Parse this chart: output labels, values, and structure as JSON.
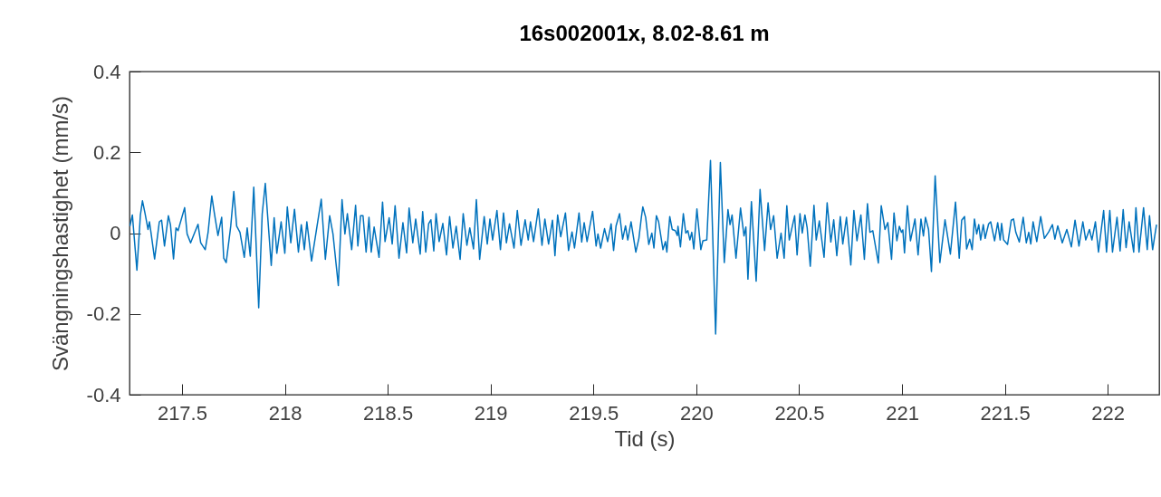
{
  "chart_data": {
    "type": "line",
    "title": "16s002001x, 8.02-8.61 m",
    "xlabel": "Tid (s)",
    "ylabel": "Svängningshastighet (mm/s)",
    "xlim": [
      217.245,
      222.25
    ],
    "xticks": [
      217.5,
      218,
      218.5,
      219,
      219.5,
      220,
      220.5,
      221,
      221.5,
      222
    ],
    "ylim": [
      -0.4,
      0.4
    ],
    "yticks": [
      -0.4,
      -0.2,
      0,
      0.2,
      0.4
    ],
    "grid": false,
    "line_style": "solid",
    "marker": "none",
    "series": [
      {
        "color": "#0072bd",
        "x": [
          217.247,
          217.259,
          217.281,
          217.298,
          217.308,
          217.32,
          217.335,
          217.342,
          217.349,
          217.367,
          217.39,
          217.401,
          217.415,
          217.434,
          217.444,
          217.459,
          217.471,
          217.481,
          217.513,
          217.525,
          217.542,
          217.578,
          217.591,
          217.613,
          217.627,
          217.645,
          217.656,
          217.675,
          217.693,
          217.703,
          217.715,
          217.737,
          217.752,
          217.766,
          217.782,
          217.803,
          217.817,
          217.832,
          217.849,
          217.873,
          217.89,
          217.905,
          217.934,
          217.948,
          217.961,
          217.982,
          218.0,
          218.012,
          218.029,
          218.047,
          218.066,
          218.08,
          218.095,
          218.107,
          218.13,
          218.177,
          218.197,
          218.218,
          218.234,
          218.26,
          218.278,
          218.292,
          218.304,
          218.325,
          218.344,
          218.355,
          218.368,
          218.38,
          218.395,
          218.409,
          218.42,
          218.434,
          218.458,
          218.475,
          218.487,
          218.507,
          218.522,
          218.536,
          218.555,
          218.574,
          218.592,
          218.604,
          218.622,
          218.636,
          218.658,
          218.67,
          218.685,
          218.699,
          218.71,
          218.724,
          218.735,
          218.75,
          218.768,
          218.786,
          218.801,
          218.817,
          218.833,
          218.852,
          218.867,
          218.885,
          218.899,
          218.917,
          218.931,
          218.947,
          218.969,
          218.984,
          218.997,
          219.01,
          219.031,
          219.048,
          219.063,
          219.077,
          219.092,
          219.114,
          219.13,
          219.148,
          219.168,
          219.183,
          219.194,
          219.209,
          219.232,
          219.25,
          219.264,
          219.282,
          219.301,
          219.313,
          219.326,
          219.341,
          219.364,
          219.379,
          219.396,
          219.408,
          219.43,
          219.443,
          219.455,
          219.469,
          219.496,
          219.513,
          219.522,
          219.535,
          219.554,
          219.569,
          219.586,
          219.598,
          219.61,
          219.627,
          219.642,
          219.656,
          219.667,
          219.683,
          219.706,
          219.721,
          219.733,
          219.74,
          219.754,
          219.769,
          219.784,
          219.794,
          219.806,
          219.817,
          219.838,
          219.85,
          219.857,
          219.871,
          219.883,
          219.898,
          219.908,
          219.911,
          219.923,
          219.937,
          219.949,
          219.959,
          219.969,
          219.978,
          219.988,
          220.003,
          220.022,
          220.032,
          220.051,
          220.069,
          220.094,
          220.117,
          220.136,
          220.154,
          220.164,
          220.174,
          220.193,
          220.215,
          220.232,
          220.241,
          220.251,
          220.268,
          220.291,
          220.31,
          220.332,
          220.349,
          220.361,
          220.376,
          220.393,
          220.412,
          220.427,
          220.44,
          220.452,
          220.478,
          220.49,
          220.504,
          220.515,
          220.528,
          220.539,
          220.554,
          220.572,
          220.583,
          220.598,
          220.621,
          220.636,
          220.654,
          220.668,
          220.683,
          220.7,
          220.712,
          220.73,
          220.751,
          220.766,
          220.781,
          220.8,
          220.817,
          220.832,
          220.844,
          220.858,
          220.885,
          220.899,
          220.917,
          220.931,
          220.949,
          220.961,
          220.975,
          220.987,
          220.997,
          221.004,
          221.012,
          221.026,
          221.041,
          221.063,
          221.078,
          221.092,
          221.104,
          221.114,
          221.129,
          221.143,
          221.161,
          221.184,
          221.209,
          221.235,
          221.26,
          221.278,
          221.29,
          221.304,
          221.314,
          221.329,
          221.341,
          221.352,
          221.363,
          221.373,
          221.382,
          221.395,
          221.404,
          221.421,
          221.431,
          221.45,
          221.465,
          221.477,
          221.484,
          221.494,
          221.513,
          221.531,
          221.542,
          221.553,
          221.57,
          221.589,
          221.604,
          221.616,
          221.626,
          221.637,
          221.655,
          221.674,
          221.692,
          221.713,
          221.731,
          221.743,
          221.757,
          221.779,
          221.801,
          221.823,
          221.841,
          221.86,
          221.879,
          221.893,
          221.911,
          221.923,
          221.94,
          221.955,
          221.98,
          221.994,
          222.01,
          222.023,
          222.045,
          222.06,
          222.075,
          222.089,
          222.104,
          222.126,
          222.137,
          222.152,
          222.174,
          222.192,
          222.203,
          222.218,
          222.237
        ],
        "values": [
          0.017,
          0.045,
          -0.092,
          0.045,
          0.08,
          0.05,
          0.009,
          0.028,
          0.003,
          -0.064,
          0.028,
          0.032,
          -0.032,
          0.043,
          0.021,
          -0.064,
          0.013,
          0.006,
          0.063,
          -0.002,
          -0.024,
          0.022,
          -0.024,
          -0.041,
          0.002,
          0.092,
          0.054,
          -0.006,
          0.039,
          -0.062,
          -0.073,
          0.017,
          0.103,
          0.017,
          0.002,
          -0.06,
          0.013,
          -0.057,
          0.114,
          -0.185,
          0.047,
          0.123,
          -0.08,
          0.038,
          -0.05,
          0.028,
          -0.05,
          0.065,
          -0.024,
          0.059,
          -0.047,
          0.021,
          -0.041,
          0.028,
          -0.069,
          0.084,
          -0.065,
          0.043,
          -0.002,
          -0.13,
          0.083,
          -0.002,
          0.048,
          -0.041,
          0.069,
          -0.032,
          0.043,
          0.043,
          -0.047,
          0.039,
          -0.047,
          0.015,
          -0.06,
          0.077,
          -0.021,
          0.038,
          -0.027,
          0.068,
          -0.062,
          0.026,
          -0.049,
          0.062,
          -0.024,
          0.035,
          -0.052,
          0.053,
          -0.047,
          0.023,
          0.033,
          -0.044,
          0.048,
          -0.021,
          0.024,
          -0.054,
          0.041,
          -0.037,
          0.017,
          -0.065,
          0.048,
          -0.03,
          0.013,
          -0.039,
          0.083,
          -0.065,
          0.041,
          -0.027,
          0.035,
          -0.017,
          0.056,
          -0.041,
          0.05,
          -0.024,
          0.023,
          -0.037,
          0.056,
          -0.03,
          0.033,
          -0.017,
          0.028,
          -0.021,
          0.06,
          -0.03,
          0.035,
          -0.027,
          0.032,
          -0.056,
          0.045,
          -0.009,
          0.05,
          -0.043,
          0.003,
          -0.037,
          0.05,
          -0.022,
          0.026,
          -0.021,
          0.054,
          -0.032,
          -0.002,
          -0.037,
          0.011,
          -0.021,
          0.023,
          -0.043,
          0.018,
          0.048,
          -0.015,
          0.018,
          -0.017,
          0.028,
          -0.047,
          -0.013,
          0.039,
          0.065,
          0.039,
          -0.028,
          0.0,
          -0.037,
          0.043,
          0.028,
          -0.041,
          -0.021,
          -0.047,
          0.041,
          0.009,
          0.006,
          -0.006,
          0.017,
          -0.034,
          0.048,
          0.0,
          0.006,
          -0.017,
          0.002,
          -0.039,
          0.06,
          -0.041,
          -0.019,
          -0.017,
          0.18,
          -0.25,
          0.175,
          -0.073,
          0.058,
          0.021,
          0.045,
          -0.062,
          0.062,
          -0.007,
          0.015,
          -0.114,
          0.078,
          -0.119,
          0.108,
          -0.043,
          0.075,
          0.009,
          0.043,
          -0.062,
          0.0,
          -0.062,
          0.068,
          -0.017,
          0.043,
          -0.054,
          0.048,
          0.0,
          0.045,
          0.013,
          -0.082,
          0.069,
          -0.017,
          0.03,
          -0.06,
          0.075,
          -0.022,
          0.033,
          -0.056,
          0.041,
          -0.027,
          0.039,
          -0.079,
          0.056,
          -0.019,
          0.045,
          -0.065,
          0.073,
          0.002,
          0.006,
          -0.074,
          0.068,
          0.009,
          0.026,
          -0.065,
          0.05,
          -0.019,
          0.017,
          0.002,
          0.008,
          -0.049,
          0.068,
          -0.019,
          0.035,
          -0.054,
          0.035,
          -0.007,
          0.039,
          0.009,
          -0.095,
          0.142,
          -0.073,
          0.033,
          -0.052,
          0.077,
          -0.062,
          0.032,
          0.041,
          -0.039,
          -0.015,
          -0.041,
          0.035,
          -0.002,
          0.021,
          -0.017,
          0.021,
          -0.013,
          0.023,
          0.028,
          -0.019,
          0.026,
          -0.017,
          0.024,
          -0.017,
          -0.028,
          0.032,
          0.035,
          0.002,
          -0.022,
          0.039,
          -0.024,
          0.002,
          -0.027,
          0.028,
          -0.021,
          0.041,
          -0.013,
          0.003,
          0.021,
          -0.015,
          0.018,
          -0.024,
          0.009,
          -0.034,
          0.032,
          -0.032,
          0.028,
          -0.017,
          0.009,
          -0.017,
          0.028,
          -0.047,
          0.056,
          -0.047,
          0.056,
          -0.047,
          0.039,
          -0.044,
          0.058,
          -0.036,
          0.028,
          -0.047,
          0.063,
          -0.047,
          0.063,
          -0.041,
          0.043,
          -0.041,
          0.021
        ]
      }
    ]
  }
}
